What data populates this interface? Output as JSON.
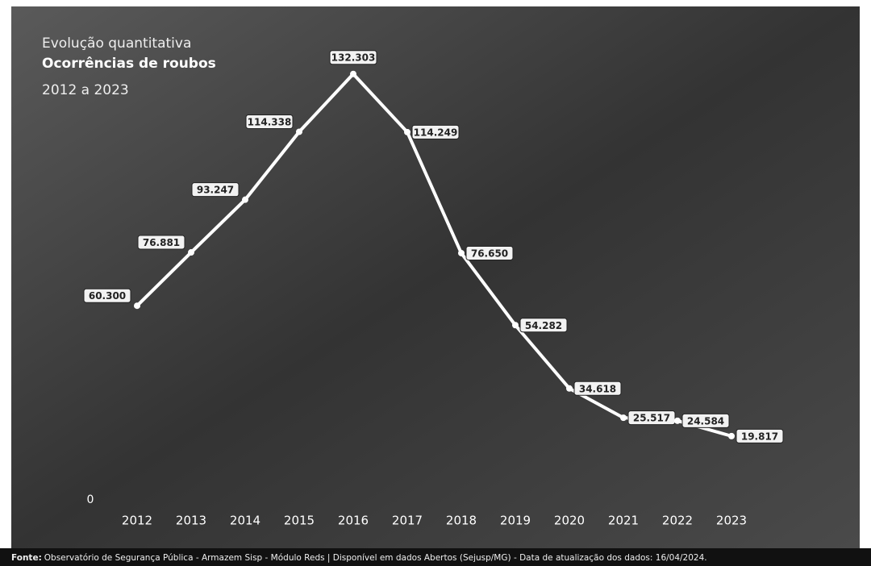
{
  "chart_data": {
    "type": "line",
    "title": "Evolução quantitativa",
    "subtitle": "Ocorrências de roubos",
    "period": "2012 a 2023",
    "categories": [
      "2012",
      "2013",
      "2014",
      "2015",
      "2016",
      "2017",
      "2018",
      "2019",
      "2020",
      "2021",
      "2022",
      "2023"
    ],
    "series": [
      {
        "name": "Ocorrências de roubos",
        "color": "#ffffff",
        "values": [
          60300,
          76881,
          93247,
          114338,
          132303,
          114249,
          76650,
          54282,
          34618,
          25517,
          24584,
          19817
        ],
        "value_labels": [
          "60.300",
          "76.881",
          "93.247",
          "114.338",
          "132.303",
          "114.249",
          "76.650",
          "54.282",
          "34.618",
          "25.517",
          "24.584",
          "19.817"
        ]
      }
    ],
    "ylim": [
      0,
      140000
    ],
    "yticks": [
      0
    ],
    "grid": false,
    "source_label": "Fonte:",
    "source_text": "Observatório de Segurança Pública - Armazem Sisp - Módulo Reds | Disponível em dados Abertos (Sejusp/MG) - Data de atualização dos dados: 16/04/2024."
  }
}
